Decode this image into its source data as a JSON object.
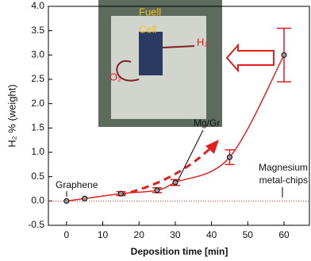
{
  "chart_data": {
    "type": "line",
    "xlabel": "Deposition time [min]",
    "ylabel": "H₂ % (weight)",
    "x": [
      0,
      5,
      15,
      25,
      30,
      45,
      60
    ],
    "series": [
      {
        "color": "#e02020",
        "values": [
          0,
          0.05,
          0.15,
          0.22,
          0.38,
          0.9,
          3.0
        ],
        "errors": [
          null,
          null,
          0.04,
          0.05,
          0.06,
          0.15,
          0.55
        ]
      }
    ],
    "xlim": [
      -5,
      67
    ],
    "xticks": [
      0,
      10,
      20,
      30,
      40,
      50,
      60
    ],
    "ylim": [
      -0.5,
      4.0
    ],
    "yticks": [
      {
        "value": -0.5,
        "label": "-0.5"
      },
      {
        "value": 0,
        "label": "0.0"
      },
      {
        "value": 0.5,
        "label": "0.5"
      },
      {
        "value": 1,
        "label": "1.0"
      },
      {
        "value": 1.5,
        "label": "1.5"
      },
      {
        "value": 2,
        "label": "2.0"
      },
      {
        "value": 2.5,
        "label": "2.5"
      },
      {
        "value": 3,
        "label": "3.0"
      },
      {
        "value": 3.5,
        "label": "3.5"
      },
      {
        "value": 4,
        "label": "4.0"
      }
    ],
    "reference_line": 0,
    "annotations": [
      "Graphene",
      "Mg/Gr",
      "Magnesium",
      "metal-chips"
    ],
    "inset_labels": [
      "Fuell",
      "Cell",
      "H₂",
      "O₂"
    ]
  }
}
